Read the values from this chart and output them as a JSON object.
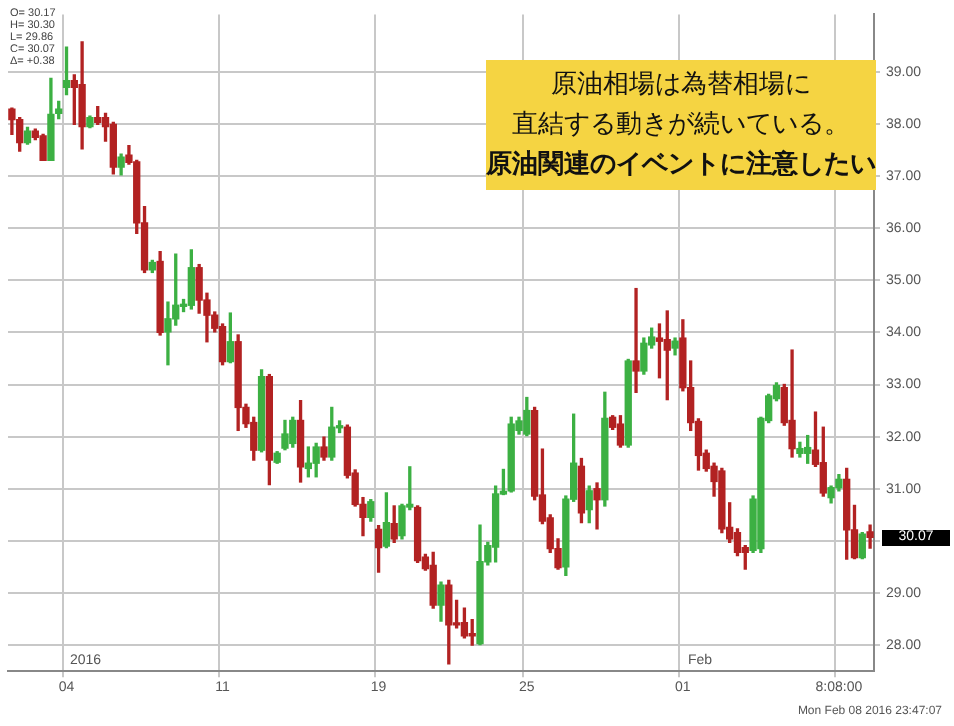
{
  "chart_data": {
    "type": "candlestick",
    "categories": [
      null,
      null,
      null,
      null,
      null,
      null,
      null,
      "04",
      null,
      null,
      null,
      null,
      null,
      null,
      null,
      null,
      null,
      null,
      null,
      null,
      null,
      null,
      null,
      null,
      null,
      null,
      null,
      "11",
      null,
      null,
      null,
      null,
      null,
      null,
      null,
      null,
      null,
      null,
      null,
      null,
      null,
      null,
      null,
      null,
      null,
      null,
      null,
      "19",
      null,
      null,
      null,
      null,
      null,
      null,
      null,
      null,
      null,
      null,
      null,
      null,
      null,
      null,
      null,
      null,
      null,
      null,
      "25",
      null,
      null,
      null,
      null,
      null,
      null,
      null,
      null,
      null,
      null,
      null,
      null,
      null,
      null,
      null,
      null,
      null,
      null,
      null,
      "01",
      null,
      null,
      null,
      null,
      null,
      null,
      null,
      null,
      null,
      null,
      null,
      null,
      null,
      null,
      null,
      null,
      null,
      null,
      null,
      "8:08:00",
      null,
      null,
      null,
      null
    ],
    "ohlc": [
      [
        38.28,
        38.3,
        37.8,
        38.08
      ],
      [
        38.08,
        38.12,
        37.48,
        37.64
      ],
      [
        37.64,
        37.93,
        37.61,
        37.86
      ],
      [
        37.86,
        37.9,
        37.7,
        37.74
      ],
      [
        37.77,
        37.8,
        37.3,
        37.3
      ],
      [
        37.3,
        38.87,
        37.3,
        38.18
      ],
      [
        38.2,
        38.43,
        38.1,
        38.28
      ],
      [
        38.7,
        39.47,
        38.56,
        38.83
      ],
      [
        38.83,
        38.94,
        37.99,
        38.7
      ],
      [
        38.75,
        39.57,
        37.52,
        37.95
      ],
      [
        37.95,
        38.15,
        37.93,
        38.12
      ],
      [
        38.12,
        38.33,
        37.99,
        38.03
      ],
      [
        38.12,
        38.2,
        37.67,
        37.95
      ],
      [
        37.99,
        38.03,
        37.04,
        37.17
      ],
      [
        37.17,
        37.42,
        37.02,
        37.36
      ],
      [
        37.4,
        37.58,
        37.23,
        37.26
      ],
      [
        37.27,
        37.3,
        35.9,
        36.1
      ],
      [
        36.1,
        36.41,
        35.15,
        35.2
      ],
      [
        35.2,
        35.38,
        35.15,
        35.34
      ],
      [
        35.36,
        35.55,
        33.95,
        34.0
      ],
      [
        34.01,
        34.58,
        33.38,
        34.26
      ],
      [
        34.26,
        35.5,
        34.14,
        34.52
      ],
      [
        34.5,
        34.63,
        34.4,
        34.52
      ],
      [
        34.52,
        35.58,
        34.45,
        35.24
      ],
      [
        35.24,
        35.3,
        34.37,
        34.62
      ],
      [
        34.62,
        34.75,
        33.82,
        34.33
      ],
      [
        34.33,
        34.39,
        34.01,
        34.08
      ],
      [
        34.11,
        34.16,
        33.38,
        33.44
      ],
      [
        33.44,
        34.37,
        33.42,
        33.82
      ],
      [
        33.82,
        33.95,
        32.12,
        32.56
      ],
      [
        32.56,
        32.62,
        32.18,
        32.25
      ],
      [
        32.27,
        32.37,
        31.55,
        31.74
      ],
      [
        31.74,
        33.28,
        31.71,
        33.15
      ],
      [
        33.15,
        33.19,
        31.08,
        31.55
      ],
      [
        31.51,
        31.71,
        31.49,
        31.68
      ],
      [
        31.78,
        32.31,
        31.75,
        32.05
      ],
      [
        31.87,
        32.37,
        31.8,
        32.31
      ],
      [
        32.31,
        32.69,
        31.13,
        31.42
      ],
      [
        31.39,
        31.8,
        31.23,
        31.49
      ],
      [
        31.49,
        31.87,
        31.23,
        31.8
      ],
      [
        31.8,
        31.99,
        31.55,
        31.61
      ],
      [
        31.61,
        32.56,
        31.55,
        32.18
      ],
      [
        32.17,
        32.3,
        32.08,
        32.2
      ],
      [
        32.18,
        32.22,
        31.21,
        31.26
      ],
      [
        31.3,
        31.36,
        30.67,
        30.7
      ],
      [
        30.7,
        30.83,
        30.1,
        30.45
      ],
      [
        30.45,
        30.79,
        30.38,
        30.75
      ],
      [
        30.22,
        30.29,
        29.4,
        29.87
      ],
      [
        29.9,
        30.92,
        29.87,
        30.35
      ],
      [
        30.33,
        30.67,
        29.97,
        30.04
      ],
      [
        30.1,
        30.7,
        30.04,
        30.67
      ],
      [
        30.65,
        31.42,
        30.6,
        30.7
      ],
      [
        30.64,
        30.67,
        29.59,
        29.62
      ],
      [
        29.69,
        29.74,
        29.44,
        29.47
      ],
      [
        29.53,
        29.78,
        28.71,
        28.77
      ],
      [
        28.77,
        29.21,
        28.46,
        29.15
      ],
      [
        29.15,
        29.24,
        27.64,
        28.39
      ],
      [
        28.42,
        28.86,
        28.33,
        28.39
      ],
      [
        28.43,
        28.71,
        28.14,
        28.18
      ],
      [
        28.2,
        28.49,
        28.0,
        28.18
      ],
      [
        28.03,
        30.3,
        28.01,
        29.6
      ],
      [
        29.6,
        29.97,
        29.54,
        29.91
      ],
      [
        29.88,
        31.05,
        29.6,
        30.9
      ],
      [
        30.9,
        31.37,
        30.89,
        30.95
      ],
      [
        30.96,
        32.37,
        30.94,
        32.24
      ],
      [
        32.12,
        32.37,
        32.05,
        32.3
      ],
      [
        32.05,
        32.75,
        32.02,
        32.5
      ],
      [
        32.5,
        32.56,
        30.79,
        30.86
      ],
      [
        30.88,
        31.76,
        30.33,
        30.38
      ],
      [
        30.44,
        30.5,
        29.78,
        29.85
      ],
      [
        29.85,
        30.04,
        29.46,
        29.49
      ],
      [
        29.5,
        30.86,
        29.34,
        30.8
      ],
      [
        30.8,
        32.43,
        30.76,
        31.49
      ],
      [
        31.43,
        31.58,
        30.35,
        30.54
      ],
      [
        30.6,
        31.05,
        30.35,
        30.96
      ],
      [
        31.0,
        31.11,
        30.23,
        30.79
      ],
      [
        30.79,
        32.85,
        30.67,
        32.35
      ],
      [
        32.37,
        32.4,
        32.14,
        32.18
      ],
      [
        32.24,
        32.4,
        31.8,
        31.84
      ],
      [
        31.84,
        33.48,
        31.8,
        33.45
      ],
      [
        33.45,
        34.84,
        32.85,
        33.26
      ],
      [
        33.26,
        33.89,
        33.2,
        33.79
      ],
      [
        33.76,
        34.08,
        33.7,
        33.91
      ],
      [
        33.89,
        34.16,
        33.13,
        33.83
      ],
      [
        33.86,
        34.41,
        32.71,
        33.66
      ],
      [
        33.7,
        33.89,
        33.57,
        33.83
      ],
      [
        33.89,
        34.24,
        32.88,
        32.94
      ],
      [
        32.94,
        33.45,
        32.12,
        32.27
      ],
      [
        32.29,
        32.34,
        31.36,
        31.64
      ],
      [
        31.68,
        31.74,
        31.34,
        31.39
      ],
      [
        31.43,
        31.49,
        30.86,
        31.14
      ],
      [
        31.34,
        31.39,
        30.16,
        30.23
      ],
      [
        30.26,
        30.73,
        29.97,
        30.04
      ],
      [
        30.16,
        30.23,
        29.72,
        29.78
      ],
      [
        29.87,
        29.91,
        29.46,
        29.78
      ],
      [
        29.82,
        30.86,
        29.78,
        30.8
      ],
      [
        29.85,
        32.37,
        29.78,
        32.35
      ],
      [
        32.31,
        32.81,
        32.27,
        32.78
      ],
      [
        32.73,
        33.03,
        32.69,
        32.98
      ],
      [
        32.94,
        33.0,
        32.22,
        32.27
      ],
      [
        32.31,
        33.66,
        31.61,
        31.77
      ],
      [
        31.68,
        31.89,
        31.61,
        31.77
      ],
      [
        31.68,
        32.02,
        31.49,
        31.79
      ],
      [
        31.74,
        32.47,
        31.43,
        31.47
      ],
      [
        31.5,
        32.18,
        30.86,
        30.92
      ],
      [
        30.83,
        31.05,
        30.73,
        31.02
      ],
      [
        31.02,
        31.27,
        30.96,
        31.18
      ],
      [
        31.18,
        31.39,
        29.65,
        30.21
      ],
      [
        30.21,
        30.68,
        29.66,
        29.68
      ],
      [
        29.68,
        30.16,
        29.66,
        30.13
      ],
      [
        30.17,
        30.3,
        29.86,
        30.07
      ]
    ],
    "colors": [
      "#b22222",
      "#b22222",
      "#3cb043",
      "#b22222",
      "#b22222",
      "#3cb043",
      "#3cb043",
      "#3cb043",
      "#b22222",
      "#b22222",
      "#3cb043",
      "#b22222",
      "#b22222",
      "#b22222",
      "#3cb043",
      "#b22222",
      "#b22222",
      "#b22222",
      "#3cb043",
      "#b22222",
      "#3cb043",
      "#3cb043",
      "#3cb043",
      "#3cb043",
      "#b22222",
      "#b22222",
      "#b22222",
      "#b22222",
      "#3cb043",
      "#b22222",
      "#b22222",
      "#b22222",
      "#3cb043",
      "#b22222",
      "#3cb043",
      "#3cb043",
      "#3cb043",
      "#b22222",
      "#3cb043",
      "#3cb043",
      "#b22222",
      "#3cb043",
      "#3cb043",
      "#b22222",
      "#b22222",
      "#b22222",
      "#3cb043",
      "#b22222",
      "#3cb043",
      "#b22222",
      "#3cb043",
      "#3cb043",
      "#b22222",
      "#b22222",
      "#b22222",
      "#3cb043",
      "#b22222",
      "#b22222",
      "#b22222",
      "#b22222",
      "#3cb043",
      "#3cb043",
      "#3cb043",
      "#3cb043",
      "#3cb043",
      "#3cb043",
      "#3cb043",
      "#b22222",
      "#b22222",
      "#b22222",
      "#b22222",
      "#3cb043",
      "#3cb043",
      "#b22222",
      "#3cb043",
      "#b22222",
      "#3cb043",
      "#b22222",
      "#b22222",
      "#3cb043",
      "#b22222",
      "#3cb043",
      "#3cb043",
      "#b22222",
      "#b22222",
      "#3cb043",
      "#b22222",
      "#b22222",
      "#b22222",
      "#b22222",
      "#b22222",
      "#b22222",
      "#b22222",
      "#b22222",
      "#b22222",
      "#3cb043",
      "#3cb043",
      "#3cb043",
      "#3cb043",
      "#b22222",
      "#b22222",
      "#3cb043",
      "#3cb043",
      "#b22222",
      "#b22222",
      "#3cb043",
      "#3cb043",
      "#b22222",
      "#b22222",
      "#3cb043",
      "#b22222"
    ],
    "ylim": [
      27.5,
      40.1
    ],
    "yticks": [
      {
        "value": 28,
        "label": "28.00"
      },
      {
        "value": 29,
        "label": "29.00"
      },
      {
        "value": 30,
        "label": null
      },
      {
        "value": 31,
        "label": "31.00"
      },
      {
        "value": 32,
        "label": "32.00"
      },
      {
        "value": 33,
        "label": "33.00"
      },
      {
        "value": 34,
        "label": "34.00"
      },
      {
        "value": 35,
        "label": "35.00"
      },
      {
        "value": 36,
        "label": "36.00"
      },
      {
        "value": 37,
        "label": "37.00"
      },
      {
        "value": 38,
        "label": "38.00"
      },
      {
        "value": 39,
        "label": "39.00"
      }
    ],
    "grid": true,
    "legend": false,
    "annotations": [
      "O= 30.17\nH= 30.30\nL= 29.86\nC= 30.07\nΔ= +0.38",
      "原油相場は為替相場に",
      "直結する動きが続いている。",
      "原油関連のイベントに注意したい",
      "Mon Feb 08 2016 23:47:07",
      "2016",
      "Feb",
      "30.07"
    ]
  }
}
